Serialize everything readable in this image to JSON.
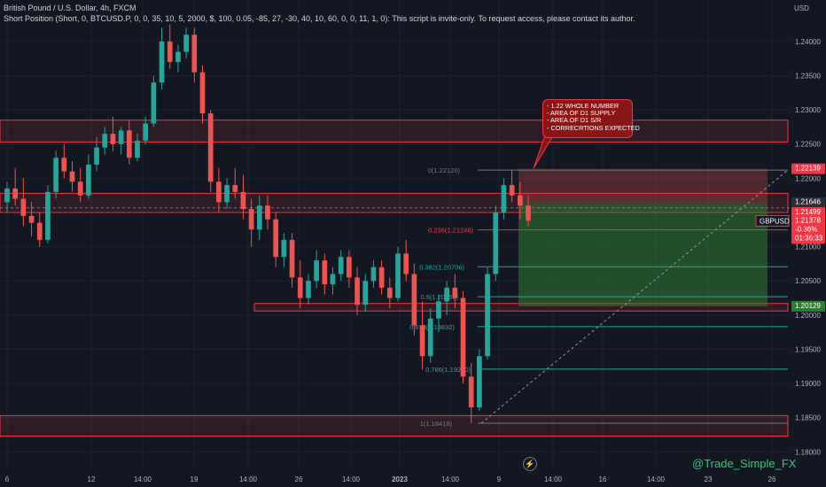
{
  "header": {
    "title": "British Pound / U.S. Dollar, 4h, FXCM",
    "indicator": "Short Position (Short, 0, BTCUSD.P, 0, 0, 35, 10, 5, 2000, $, 100, 0.05, -85, 27, -30, 40, 10, 60, 0, 0, 11, 1, 0): This script is invite-only. To request access, please contact its author."
  },
  "axis": {
    "currency": "USD"
  },
  "watermark": "@Trade_Simple_FX",
  "callout": {
    "lines": [
      "- 1.22 WHOLE NUMBER",
      "- AREA OF D1 SUPPLY",
      "- AREA OF D1 S/R",
      "- CORRECRTIONS EXPECTED"
    ]
  },
  "colors": {
    "background": "#131722",
    "bull": "#26a69a",
    "bear": "#ef5350",
    "zone": "#f23645",
    "fib": "#26a69a",
    "target": "#2e7d32"
  },
  "chart_data": {
    "type": "candlestick",
    "symbol": "GBPUSD",
    "timeframe": "4h",
    "ylim": [
      1.178,
      1.242
    ],
    "y_ticks": [
      1.18,
      1.185,
      1.19,
      1.195,
      1.2,
      1.205,
      1.21,
      1.215,
      1.22,
      1.225,
      1.23,
      1.235,
      1.24
    ],
    "y_tick_labels": [
      "1.18000",
      "1.18500",
      "1.19000",
      "1.19500",
      "1.20000",
      "1.20500",
      "1.21000",
      "1.21500",
      "1.22000",
      "1.22500",
      "1.23000",
      "1.23500",
      "1.24000"
    ],
    "x_ticks": [
      "6",
      "12",
      "14:00",
      "19",
      "14:00",
      "26",
      "14:00",
      "2023",
      "14:00",
      "9",
      "14:00",
      "16",
      "14:00",
      "23",
      "26"
    ],
    "price_labels": [
      {
        "value": 1.22139,
        "label": "1.22139",
        "color": "#f23645"
      },
      {
        "value": 1.21646,
        "label": "1.21646",
        "color": "#2a2e39"
      },
      {
        "value": 1.21499,
        "label": "1.21499",
        "color": "#f23645"
      },
      {
        "value": 1.21378,
        "label": "1.21378",
        "extra": [
          "-0.36%",
          "01:36:33"
        ],
        "color": "#f23645",
        "tag": "GBPUSD"
      },
      {
        "value": 1.20129,
        "label": "1.20129",
        "color": "#2e7d32"
      }
    ],
    "zones": [
      {
        "from": 1.2253,
        "to": 1.2285
      },
      {
        "from": 1.215,
        "to": 1.2178
      },
      {
        "from": 1.2006,
        "to": 1.2017
      },
      {
        "from": 1.1823,
        "to": 1.1853
      }
    ],
    "fib_levels": [
      {
        "ratio": "0",
        "price": 1.2212,
        "label": "0(1.22120)"
      },
      {
        "ratio": "0.236",
        "price": 1.21246,
        "label": "0.236(1.21246)"
      },
      {
        "ratio": "0.382",
        "price": 1.20706,
        "label": "0.382(1.20706)"
      },
      {
        "ratio": "0.5",
        "price": 1.20269,
        "label": "0.5(1.20269)"
      },
      {
        "ratio": "0.618",
        "price": 1.19832,
        "label": "0.618(1.19832)"
      },
      {
        "ratio": "0.786",
        "price": 1.1921,
        "label": "0.786(1.19210)"
      },
      {
        "ratio": "1",
        "price": 1.18418,
        "label": "1(1.18418)"
      }
    ],
    "position": {
      "side": "short",
      "entry": 1.21646,
      "stop": 1.22139,
      "target": 1.20129
    },
    "candles": [
      [
        1.2165,
        1.2195,
        1.215,
        1.2185
      ],
      [
        1.2185,
        1.2215,
        1.216,
        1.217
      ],
      [
        1.217,
        1.22,
        1.213,
        1.2145
      ],
      [
        1.2145,
        1.2165,
        1.2115,
        1.2135
      ],
      [
        1.2135,
        1.215,
        1.21,
        1.211
      ],
      [
        1.211,
        1.219,
        1.2105,
        1.218
      ],
      [
        1.218,
        1.224,
        1.217,
        1.223
      ],
      [
        1.223,
        1.225,
        1.22,
        1.221
      ],
      [
        1.221,
        1.2225,
        1.218,
        1.2195
      ],
      [
        1.2195,
        1.2215,
        1.2165,
        1.2175
      ],
      [
        1.2175,
        1.2235,
        1.217,
        1.222
      ],
      [
        1.222,
        1.226,
        1.221,
        1.2245
      ],
      [
        1.2245,
        1.2275,
        1.2235,
        1.2265
      ],
      [
        1.2265,
        1.229,
        1.224,
        1.225
      ],
      [
        1.225,
        1.2275,
        1.2235,
        1.227
      ],
      [
        1.227,
        1.2285,
        1.222,
        1.223
      ],
      [
        1.223,
        1.2265,
        1.2225,
        1.2255
      ],
      [
        1.2255,
        1.229,
        1.225,
        1.228
      ],
      [
        1.228,
        1.235,
        1.2275,
        1.234
      ],
      [
        1.234,
        1.242,
        1.233,
        1.24
      ],
      [
        1.24,
        1.2425,
        1.236,
        1.237
      ],
      [
        1.237,
        1.2395,
        1.2355,
        1.2385
      ],
      [
        1.2385,
        1.242,
        1.2375,
        1.241
      ],
      [
        1.241,
        1.242,
        1.234,
        1.2355
      ],
      [
        1.2355,
        1.2365,
        1.228,
        1.2295
      ],
      [
        1.2295,
        1.23,
        1.218,
        1.2195
      ],
      [
        1.2195,
        1.2215,
        1.215,
        1.2165
      ],
      [
        1.2165,
        1.22,
        1.2155,
        1.219
      ],
      [
        1.219,
        1.2215,
        1.217,
        1.218
      ],
      [
        1.218,
        1.2205,
        1.214,
        1.2155
      ],
      [
        1.2155,
        1.217,
        1.21,
        1.2125
      ],
      [
        1.2125,
        1.2175,
        1.211,
        1.216
      ],
      [
        1.216,
        1.2175,
        1.2125,
        1.214
      ],
      [
        1.214,
        1.215,
        1.207,
        1.2085
      ],
      [
        1.2085,
        1.212,
        1.207,
        1.211
      ],
      [
        1.211,
        1.212,
        1.204,
        1.2055
      ],
      [
        1.2055,
        1.208,
        1.201,
        1.2025
      ],
      [
        1.2025,
        1.206,
        1.2015,
        1.205
      ],
      [
        1.205,
        1.2095,
        1.204,
        1.208
      ],
      [
        1.208,
        1.209,
        1.203,
        1.2045
      ],
      [
        1.2045,
        1.207,
        1.203,
        1.206
      ],
      [
        1.206,
        1.2095,
        1.205,
        1.2085
      ],
      [
        1.2085,
        1.2095,
        1.204,
        1.2055
      ],
      [
        1.2055,
        1.207,
        1.2,
        1.2015
      ],
      [
        1.2015,
        1.206,
        1.2005,
        1.205
      ],
      [
        1.205,
        1.208,
        1.204,
        1.207
      ],
      [
        1.207,
        1.208,
        1.203,
        1.204
      ],
      [
        1.204,
        1.2055,
        1.201,
        1.2025
      ],
      [
        1.2025,
        1.21,
        1.202,
        1.209
      ],
      [
        1.209,
        1.211,
        1.205,
        1.206
      ],
      [
        1.206,
        1.2075,
        1.197,
        1.1985
      ],
      [
        1.1985,
        1.202,
        1.192,
        1.194
      ],
      [
        1.194,
        1.201,
        1.193,
        1.1995
      ],
      [
        1.1995,
        1.203,
        1.1975,
        1.202
      ],
      [
        1.202,
        1.205,
        1.2,
        1.204
      ],
      [
        1.204,
        1.206,
        1.201,
        1.2025
      ],
      [
        1.2025,
        1.2035,
        1.19,
        1.191
      ],
      [
        1.191,
        1.193,
        1.1842,
        1.1865
      ],
      [
        1.1865,
        1.195,
        1.186,
        1.194
      ],
      [
        1.194,
        1.207,
        1.1935,
        1.206
      ],
      [
        1.206,
        1.216,
        1.205,
        1.215
      ],
      [
        1.215,
        1.22,
        1.214,
        1.219
      ],
      [
        1.219,
        1.2212,
        1.2165,
        1.2175
      ],
      [
        1.2175,
        1.2195,
        1.214,
        1.216
      ],
      [
        1.216,
        1.2175,
        1.213,
        1.2138
      ]
    ]
  }
}
